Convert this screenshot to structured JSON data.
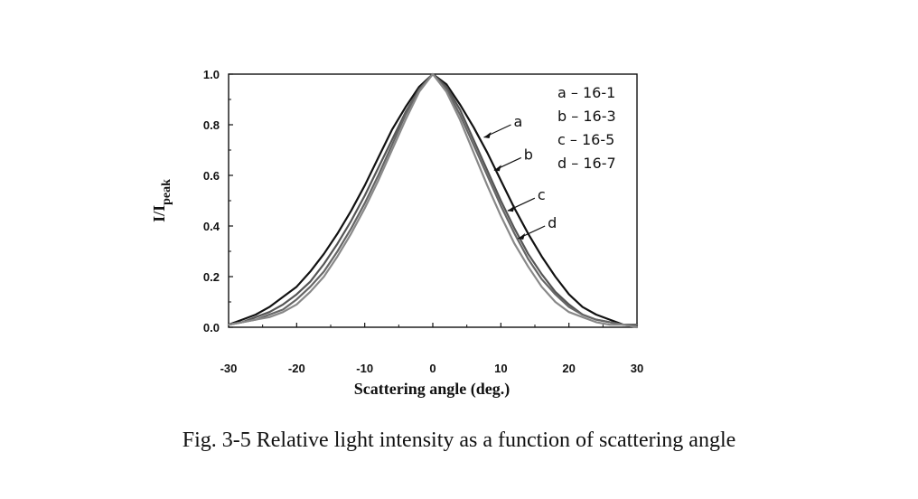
{
  "figure": {
    "caption": "Fig. 3-5 Relative light intensity as a function of scattering angle"
  },
  "chart_data": {
    "type": "line",
    "xlabel": "Scattering angle (deg.)",
    "ylabel_main": "I/I",
    "ylabel_sub": "peak",
    "xlim": [
      -30,
      30
    ],
    "ylim": [
      0.0,
      1.0
    ],
    "xticks": [
      -30,
      -20,
      -10,
      0,
      10,
      20,
      30
    ],
    "xtick_labels": [
      "-30",
      "-20",
      "-10",
      "0",
      "10",
      "20",
      "30"
    ],
    "yticks": [
      0.0,
      0.2,
      0.4,
      0.6,
      0.8,
      1.0
    ],
    "ytick_labels": [
      "0.0",
      "0.2",
      "0.4",
      "0.6",
      "0.8",
      "1.0"
    ],
    "grid": false,
    "legend_position": "top-right",
    "legend": [
      "a – 16-1",
      "b – 16-3",
      "c – 16-5",
      "d – 16-7"
    ],
    "series": [
      {
        "name": "a",
        "color": "#111111",
        "x": [
          -30,
          -28,
          -26,
          -24,
          -22,
          -20,
          -18,
          -16,
          -14,
          -12,
          -10,
          -8,
          -6,
          -4,
          -2,
          0,
          2,
          4,
          6,
          8,
          10,
          12,
          14,
          16,
          18,
          20,
          22,
          24,
          26,
          28,
          30
        ],
        "y": [
          0.01,
          0.03,
          0.05,
          0.08,
          0.12,
          0.16,
          0.22,
          0.29,
          0.37,
          0.46,
          0.56,
          0.67,
          0.78,
          0.87,
          0.95,
          1.0,
          0.96,
          0.88,
          0.79,
          0.69,
          0.58,
          0.47,
          0.37,
          0.28,
          0.2,
          0.13,
          0.08,
          0.05,
          0.03,
          0.01,
          0.01
        ]
      },
      {
        "name": "b",
        "color": "#555555",
        "x": [
          -30,
          -28,
          -26,
          -24,
          -22,
          -20,
          -18,
          -16,
          -14,
          -12,
          -10,
          -8,
          -6,
          -4,
          -2,
          0,
          2,
          4,
          6,
          8,
          10,
          12,
          14,
          16,
          18,
          20,
          22,
          24,
          26,
          28,
          30
        ],
        "y": [
          0.01,
          0.02,
          0.04,
          0.06,
          0.09,
          0.13,
          0.18,
          0.25,
          0.33,
          0.42,
          0.52,
          0.63,
          0.74,
          0.85,
          0.94,
          1.0,
          0.95,
          0.86,
          0.74,
          0.62,
          0.5,
          0.39,
          0.29,
          0.21,
          0.14,
          0.09,
          0.05,
          0.03,
          0.02,
          0.01,
          0.01
        ]
      },
      {
        "name": "c",
        "color": "#666666",
        "x": [
          -30,
          -28,
          -26,
          -24,
          -22,
          -20,
          -18,
          -16,
          -14,
          -12,
          -10,
          -8,
          -6,
          -4,
          -2,
          0,
          2,
          4,
          6,
          8,
          10,
          12,
          14,
          16,
          18,
          20,
          22,
          24,
          26,
          28,
          30
        ],
        "y": [
          0.01,
          0.02,
          0.03,
          0.05,
          0.07,
          0.11,
          0.16,
          0.22,
          0.3,
          0.39,
          0.49,
          0.6,
          0.72,
          0.84,
          0.94,
          1.0,
          0.94,
          0.84,
          0.72,
          0.6,
          0.48,
          0.37,
          0.27,
          0.19,
          0.13,
          0.08,
          0.05,
          0.03,
          0.02,
          0.01,
          0.01
        ]
      },
      {
        "name": "d",
        "color": "#888888",
        "x": [
          -30,
          -28,
          -26,
          -24,
          -22,
          -20,
          -18,
          -16,
          -14,
          -12,
          -10,
          -8,
          -6,
          -4,
          -2,
          0,
          2,
          4,
          6,
          8,
          10,
          12,
          14,
          16,
          18,
          20,
          22,
          24,
          26,
          28,
          30
        ],
        "y": [
          0.01,
          0.02,
          0.03,
          0.04,
          0.06,
          0.09,
          0.14,
          0.2,
          0.28,
          0.37,
          0.47,
          0.58,
          0.7,
          0.82,
          0.93,
          1.0,
          0.93,
          0.82,
          0.69,
          0.56,
          0.44,
          0.33,
          0.24,
          0.16,
          0.1,
          0.06,
          0.04,
          0.02,
          0.01,
          0.01,
          0.0
        ]
      }
    ],
    "annotations": [
      {
        "label": "a",
        "x": 7.5,
        "y": 0.75
      },
      {
        "label": "b",
        "x": 9.0,
        "y": 0.62
      },
      {
        "label": "c",
        "x": 11.0,
        "y": 0.46
      },
      {
        "label": "d",
        "x": 12.5,
        "y": 0.35
      }
    ]
  }
}
